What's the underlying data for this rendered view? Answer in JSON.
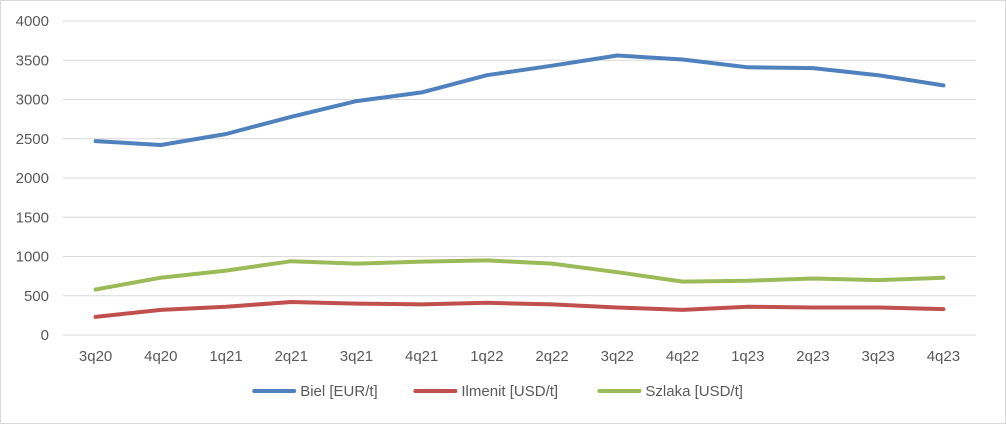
{
  "chart_data": {
    "type": "line",
    "title": "",
    "xlabel": "",
    "ylabel": "",
    "categories": [
      "3q20",
      "4q20",
      "1q21",
      "2q21",
      "3q21",
      "4q21",
      "1q22",
      "2q22",
      "3q22",
      "4q22",
      "1q23",
      "2q23",
      "3q23",
      "4q23"
    ],
    "ylim": [
      0,
      4000
    ],
    "yticks": [
      0,
      500,
      1000,
      1500,
      2000,
      2500,
      3000,
      3500,
      4000
    ],
    "grid": "horizontal",
    "legend_position": "bottom",
    "series": [
      {
        "name": "Biel [EUR/t]",
        "color": "#4f81bd",
        "values": [
          2470,
          2420,
          2560,
          2780,
          2980,
          3090,
          3310,
          3430,
          3560,
          3510,
          3410,
          3400,
          3310,
          3180
        ]
      },
      {
        "name": "Ilmenit [USD/t]",
        "color": "#c0504d",
        "values": [
          230,
          320,
          360,
          420,
          400,
          390,
          410,
          390,
          350,
          320,
          360,
          350,
          350,
          330
        ]
      },
      {
        "name": "Szlaka [USD/t]",
        "color": "#9bbb59",
        "values": [
          580,
          730,
          820,
          940,
          910,
          935,
          950,
          910,
          800,
          680,
          690,
          720,
          700,
          730
        ]
      }
    ]
  }
}
